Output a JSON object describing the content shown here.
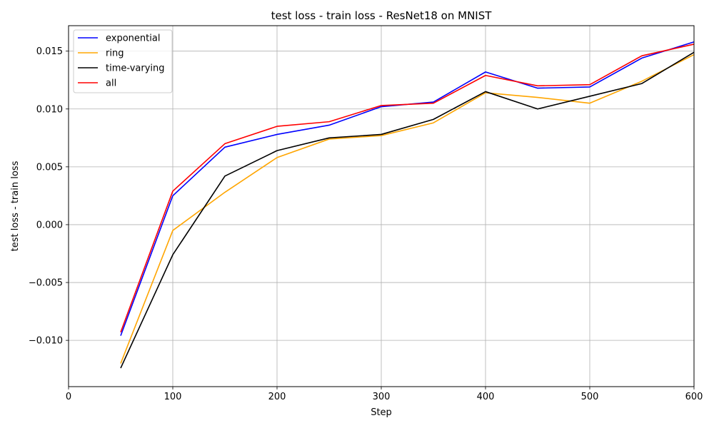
{
  "chart_data": {
    "type": "line",
    "title": "test loss - train loss - ResNet18 on MNIST",
    "xlabel": "Step",
    "ylabel": "test loss - train loss",
    "xlim": [
      0,
      600
    ],
    "ylim": [
      -0.014,
      0.0172
    ],
    "xticks": [
      0,
      100,
      200,
      300,
      400,
      500,
      600
    ],
    "yticks": [
      -0.01,
      -0.005,
      0.0,
      0.005,
      0.01,
      0.015
    ],
    "xtick_labels": [
      "0",
      "100",
      "200",
      "300",
      "400",
      "500",
      "600"
    ],
    "ytick_labels": [
      "−0.010",
      "−0.005",
      "0.000",
      "0.005",
      "0.010",
      "0.015"
    ],
    "grid": true,
    "legend_position": "top-left",
    "x": [
      50,
      100,
      150,
      200,
      250,
      300,
      350,
      400,
      450,
      500,
      550,
      600
    ],
    "series": [
      {
        "name": "exponential",
        "color": "#0000ff",
        "values": [
          -0.0096,
          0.0025,
          0.0067,
          0.0078,
          0.0086,
          0.0102,
          0.0106,
          0.0132,
          0.0118,
          0.0119,
          0.0144,
          0.0158
        ]
      },
      {
        "name": "ring",
        "color": "#ffa500",
        "values": [
          -0.012,
          -0.0005,
          0.0028,
          0.0058,
          0.0074,
          0.0077,
          0.0088,
          0.0114,
          0.011,
          0.0105,
          0.0124,
          0.0147
        ]
      },
      {
        "name": "time-varying",
        "color": "#000000",
        "values": [
          -0.0124,
          -0.0026,
          0.0042,
          0.0064,
          0.0075,
          0.0078,
          0.0091,
          0.0115,
          0.01,
          0.0111,
          0.0122,
          0.0149
        ]
      },
      {
        "name": "all",
        "color": "#ff0000",
        "values": [
          -0.0093,
          0.0029,
          0.007,
          0.0085,
          0.0089,
          0.0103,
          0.0105,
          0.0129,
          0.012,
          0.0121,
          0.0146,
          0.0156
        ]
      }
    ]
  }
}
